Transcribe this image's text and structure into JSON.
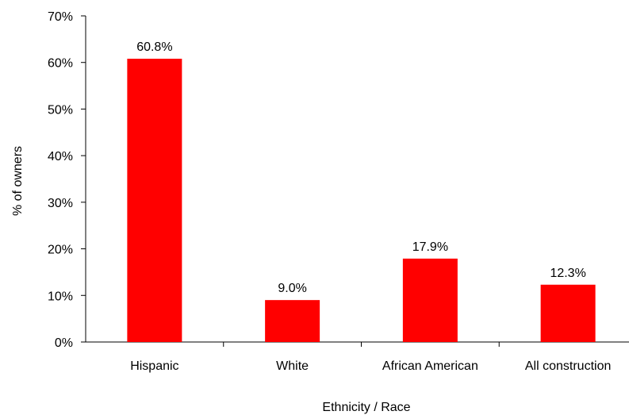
{
  "chart_data": {
    "type": "bar",
    "title": "",
    "xlabel": "Ethnicity / Race",
    "ylabel": "% of  owners",
    "categories": [
      "Hispanic",
      "White",
      "African American",
      "All construction"
    ],
    "values": [
      60.8,
      9.0,
      17.9,
      12.3
    ],
    "data_labels": [
      "60.8%",
      "9.0%",
      "17.9%",
      "12.3%"
    ],
    "ylim": [
      0,
      70
    ],
    "yticks": [
      0,
      10,
      20,
      30,
      40,
      50,
      60,
      70
    ],
    "ytick_labels": [
      "0%",
      "10%",
      "20%",
      "30%",
      "40%",
      "50%",
      "60%",
      "70%"
    ],
    "bar_color": "#ff0000",
    "grid": false,
    "legend": "none"
  }
}
